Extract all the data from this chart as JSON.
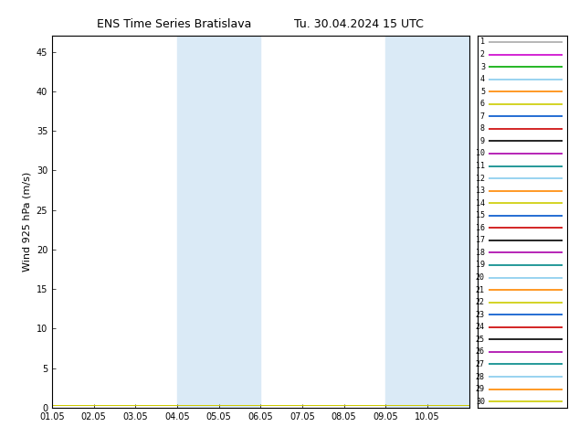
{
  "title_left": "ENS Time Series Bratislava",
  "title_right": "Tu. 30.04.2024 15 UTC",
  "ylabel": "Wind 925 hPa (m/s)",
  "ylim": [
    0,
    47
  ],
  "yticks": [
    0,
    5,
    10,
    15,
    20,
    25,
    30,
    35,
    40,
    45
  ],
  "xlim_start": 0,
  "xlim_end": 10,
  "xtick_positions": [
    0,
    1,
    2,
    3,
    4,
    5,
    6,
    7,
    8,
    9,
    10
  ],
  "xtick_labels": [
    "01.05",
    "02.05",
    "03.05",
    "04.05",
    "05.05",
    "06.05",
    "07.05",
    "08.05",
    "09.05",
    "10.05",
    ""
  ],
  "shaded_bands": [
    [
      3,
      4
    ],
    [
      4,
      5
    ],
    [
      8,
      9
    ],
    [
      9,
      10
    ]
  ],
  "shade_colors": [
    "#ddeef8",
    "#e8f4fb",
    "#ddeef8",
    "#e8f4fb"
  ],
  "shade_color": "#daeaf6",
  "background_color": "#ffffff",
  "member_colors": [
    "#aaaaaa",
    "#cc00cc",
    "#00aa00",
    "#88ccee",
    "#ff8800",
    "#cccc00",
    "#0055cc",
    "#cc0000",
    "#000000",
    "#aa00aa",
    "#008888",
    "#88ccee",
    "#ff8800",
    "#cccc00",
    "#0055cc",
    "#cc0000",
    "#000000",
    "#aa00aa",
    "#008888",
    "#88ccee",
    "#ff8800",
    "#cccc00",
    "#0055cc",
    "#cc0000",
    "#000000",
    "#aa00aa",
    "#008888",
    "#88ccee",
    "#ff8800",
    "#cccc00"
  ],
  "n_members": 30,
  "member_values": [
    0.3,
    0.3,
    0.3,
    0.3,
    0.3,
    0.3,
    0.3,
    0.3,
    0.3,
    0.3,
    0.3
  ],
  "title_fontsize": 9,
  "axis_fontsize": 8,
  "tick_fontsize": 7,
  "legend_fontsize": 6,
  "linewidth": 0.7
}
